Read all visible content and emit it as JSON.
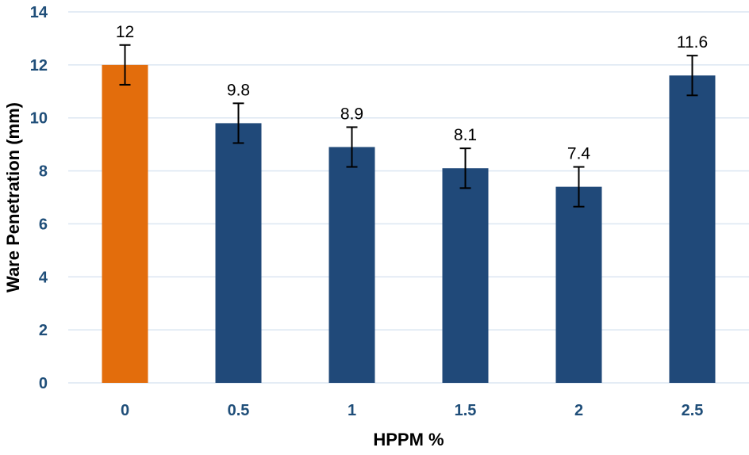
{
  "chart_data": {
    "type": "bar",
    "title": "",
    "xlabel": "HPPM %",
    "ylabel": "Ware Penetration (mm)",
    "categories": [
      "0",
      "0.5",
      "1",
      "1.5",
      "2",
      "2.5"
    ],
    "values": [
      12,
      9.8,
      8.9,
      8.1,
      7.4,
      11.6
    ],
    "data_labels": [
      "12",
      "9.8",
      "8.9",
      "8.1",
      "7.4",
      "11.6"
    ],
    "error_bars": [
      0.75,
      0.75,
      0.75,
      0.75,
      0.75,
      0.75
    ],
    "yticks": [
      0,
      2,
      4,
      6,
      8,
      10,
      12,
      14
    ],
    "ylim": [
      0,
      14
    ],
    "grid": true,
    "legend": "none",
    "colors": {
      "bar_highlight": "#E36D0C",
      "bar_default": "#204979",
      "tick_label": "#1F4E79",
      "gridline": "#DCE6F2",
      "error_bar": "#000000",
      "axis_title_text": "#000000"
    },
    "bar_colors": [
      "#E36D0C",
      "#204979",
      "#204979",
      "#204979",
      "#204979",
      "#204979"
    ]
  }
}
